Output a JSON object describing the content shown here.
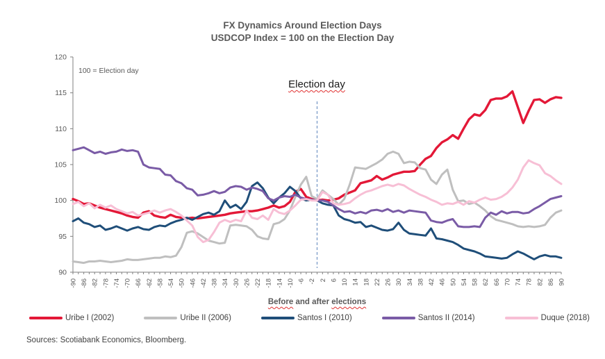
{
  "title": {
    "line1": "FX Dynamics Around Election Days",
    "line2": "USDCOP Index = 100 on the Election Day"
  },
  "annotations": {
    "index_note": "100 = Election day",
    "election_day_label": "Election day"
  },
  "x_axis": {
    "title_word_1": "Before",
    "title_mid": " and after ",
    "title_word_2": "elections",
    "tick_step": 2,
    "label_step": 4,
    "tick_labels": [
      "-90",
      "-86",
      "-82",
      "-78",
      "-74",
      "-70",
      "-66",
      "-62",
      "-58",
      "-54",
      "-50",
      "-46",
      "-42",
      "-38",
      "-34",
      "-30",
      "-26",
      "-22",
      "-18",
      "-14",
      "-10",
      "-6",
      "-2",
      "2",
      "6",
      "10",
      "14",
      "18",
      "22",
      "26",
      "30",
      "34",
      "38",
      "42",
      "46",
      "50",
      "54",
      "58",
      "62",
      "66",
      "70",
      "74",
      "78",
      "82",
      "86",
      "90"
    ]
  },
  "y_axis": {
    "tick_labels": [
      "120",
      "115",
      "110",
      "105",
      "100",
      "95",
      "90"
    ],
    "min": 90,
    "max": 120
  },
  "legend": [
    {
      "label": "Uribe I (2002)",
      "color": "#E31837"
    },
    {
      "label": "Uribe II (2006)",
      "color": "#BFBFBF"
    },
    {
      "label": "Santos I (2010)",
      "color": "#1F4E79"
    },
    {
      "label": "Santos II (2014)",
      "color": "#7A5BA6"
    },
    {
      "label": "Duque (2018)",
      "color": "#F7BFD5"
    }
  ],
  "sources": "Sources: Scotiabank Economics, Bloomberg.",
  "chart_data": {
    "type": "line",
    "title": "FX Dynamics Around Election Days — USDCOP Index = 100 on the Election Day",
    "xlabel": "Before and after elections",
    "ylabel": "",
    "xlim": [
      -90,
      90
    ],
    "ylim": [
      90,
      120
    ],
    "grid": false,
    "legend_position": "bottom",
    "x_start": -90,
    "x_step": 2,
    "election_day_line": {
      "x": 0,
      "style": "dashed",
      "color": "#7B9BC8"
    },
    "series": [
      {
        "name": "Uribe I (2002)",
        "color": "#E31837",
        "width": 3.4,
        "values": [
          100.2,
          99.9,
          99.5,
          99.6,
          99.3,
          99.0,
          98.8,
          98.6,
          98.4,
          98.2,
          97.9,
          97.7,
          97.6,
          98.3,
          98.5,
          97.9,
          97.7,
          97.6,
          98.0,
          97.7,
          97.6,
          97.5,
          97.6,
          97.5,
          97.6,
          97.7,
          97.8,
          97.9,
          98.0,
          98.2,
          98.3,
          98.4,
          98.5,
          98.5,
          98.6,
          98.8,
          99.0,
          99.3,
          99.0,
          99.2,
          99.8,
          101.2,
          101.6,
          100.5,
          100.2,
          100.0,
          100.1,
          100.0,
          100.1,
          100.3,
          100.8,
          101.1,
          101.4,
          102.4,
          102.6,
          102.8,
          103.4,
          102.9,
          103.2,
          103.6,
          103.8,
          104.0,
          104.0,
          104.1,
          105.0,
          105.8,
          106.2,
          107.3,
          108.1,
          108.5,
          109.1,
          108.6,
          110.0,
          111.3,
          112.0,
          111.8,
          112.6,
          114.0,
          114.2,
          114.2,
          114.5,
          115.2,
          113.0,
          110.8,
          112.5,
          114.0,
          114.1,
          113.6,
          114.1,
          114.4,
          114.3
        ]
      },
      {
        "name": "Uribe II (2006)",
        "color": "#BFBFBF",
        "width": 3,
        "values": [
          91.5,
          91.4,
          91.3,
          91.5,
          91.5,
          91.6,
          91.5,
          91.4,
          91.5,
          91.6,
          91.8,
          91.7,
          91.7,
          91.8,
          91.9,
          92.0,
          92.0,
          92.2,
          92.1,
          92.3,
          93.5,
          95.5,
          95.7,
          95.4,
          94.9,
          94.4,
          94.2,
          94.0,
          94.1,
          96.5,
          96.6,
          96.5,
          96.4,
          95.9,
          95.0,
          94.7,
          94.6,
          96.7,
          96.9,
          97.4,
          98.6,
          100.5,
          102.2,
          103.3,
          100.6,
          100.2,
          101.4,
          100.8,
          100.2,
          99.4,
          100.2,
          102.2,
          104.6,
          104.5,
          104.4,
          104.8,
          105.2,
          105.7,
          106.5,
          106.8,
          106.5,
          105.2,
          105.4,
          105.3,
          104.5,
          104.3,
          102.9,
          102.3,
          103.6,
          104.3,
          101.5,
          99.9,
          100.0,
          99.5,
          99.7,
          99.2,
          98.6,
          97.8,
          97.3,
          97.1,
          96.9,
          96.7,
          96.4,
          96.3,
          96.4,
          96.3,
          96.4,
          96.6,
          97.6,
          98.3,
          98.6
        ]
      },
      {
        "name": "Santos I (2010)",
        "color": "#1F4E79",
        "width": 3,
        "values": [
          97.1,
          97.5,
          96.9,
          96.7,
          96.3,
          96.5,
          95.9,
          96.1,
          96.4,
          96.1,
          95.8,
          96.1,
          96.3,
          96.0,
          95.9,
          96.3,
          96.5,
          96.4,
          96.8,
          97.1,
          97.3,
          97.6,
          97.3,
          97.7,
          98.1,
          98.3,
          98.0,
          98.5,
          100.0,
          99.0,
          99.4,
          98.8,
          99.8,
          102.0,
          102.5,
          101.7,
          100.4,
          99.6,
          100.4,
          101.0,
          101.9,
          101.3,
          100.3,
          100.0,
          100.1,
          100.0,
          99.6,
          99.4,
          99.3,
          97.9,
          97.4,
          97.2,
          96.9,
          97.0,
          96.3,
          96.5,
          96.2,
          95.9,
          95.8,
          96.0,
          96.9,
          95.9,
          95.4,
          95.3,
          95.2,
          95.1,
          96.1,
          94.7,
          94.6,
          94.4,
          94.2,
          93.8,
          93.3,
          93.1,
          92.9,
          92.6,
          92.2,
          92.1,
          92.0,
          91.9,
          92.0,
          92.5,
          92.9,
          92.6,
          92.2,
          91.8,
          92.2,
          92.4,
          92.2,
          92.2,
          92.0
        ]
      },
      {
        "name": "Santos II (2014)",
        "color": "#7A5BA6",
        "width": 3,
        "values": [
          107.0,
          107.2,
          107.4,
          107.0,
          106.6,
          106.8,
          106.5,
          106.7,
          106.8,
          107.1,
          106.9,
          107.0,
          106.8,
          105.0,
          104.6,
          104.5,
          104.4,
          103.6,
          103.5,
          102.7,
          102.4,
          101.7,
          101.5,
          100.7,
          100.8,
          101.0,
          101.3,
          101.0,
          101.2,
          101.8,
          102.0,
          101.9,
          101.5,
          101.8,
          101.6,
          101.3,
          100.3,
          100.0,
          100.4,
          100.6,
          100.5,
          100.8,
          100.4,
          100.2,
          100.1,
          100.0,
          100.0,
          99.8,
          99.3,
          98.8,
          98.4,
          98.5,
          98.2,
          98.4,
          98.2,
          98.6,
          98.7,
          98.5,
          98.8,
          98.4,
          98.6,
          98.3,
          98.6,
          98.5,
          98.4,
          98.3,
          97.2,
          97.0,
          96.9,
          97.2,
          97.4,
          96.4,
          96.3,
          96.3,
          96.4,
          96.3,
          97.6,
          98.3,
          98.0,
          98.5,
          98.2,
          98.4,
          98.4,
          98.2,
          98.3,
          98.8,
          99.2,
          99.7,
          100.2,
          100.4,
          100.6
        ]
      },
      {
        "name": "Duque (2018)",
        "color": "#F7BFD5",
        "width": 3,
        "values": [
          99.5,
          99.8,
          99.2,
          99.6,
          98.9,
          99.4,
          99.0,
          99.3,
          98.8,
          98.5,
          98.2,
          98.4,
          97.9,
          98.1,
          98.3,
          98.6,
          98.3,
          98.6,
          98.8,
          98.4,
          97.9,
          97.2,
          96.5,
          94.9,
          94.2,
          94.5,
          95.6,
          96.9,
          97.3,
          97.0,
          97.3,
          97.1,
          98.6,
          97.6,
          97.4,
          97.9,
          97.3,
          98.8,
          98.3,
          98.1,
          98.6,
          99.3,
          100.1,
          100.2,
          100.0,
          100.0,
          101.2,
          100.8,
          99.6,
          99.4,
          99.5,
          99.7,
          100.3,
          100.8,
          101.2,
          101.4,
          101.7,
          102.0,
          102.2,
          102.0,
          102.3,
          102.1,
          101.6,
          101.2,
          100.8,
          100.5,
          100.1,
          99.8,
          99.4,
          99.6,
          99.5,
          99.8,
          99.4,
          99.9,
          99.7,
          100.1,
          100.4,
          100.1,
          100.2,
          100.5,
          101.0,
          101.8,
          102.9,
          104.6,
          105.6,
          105.2,
          104.9,
          103.8,
          103.4,
          102.8,
          102.3
        ]
      }
    ]
  }
}
